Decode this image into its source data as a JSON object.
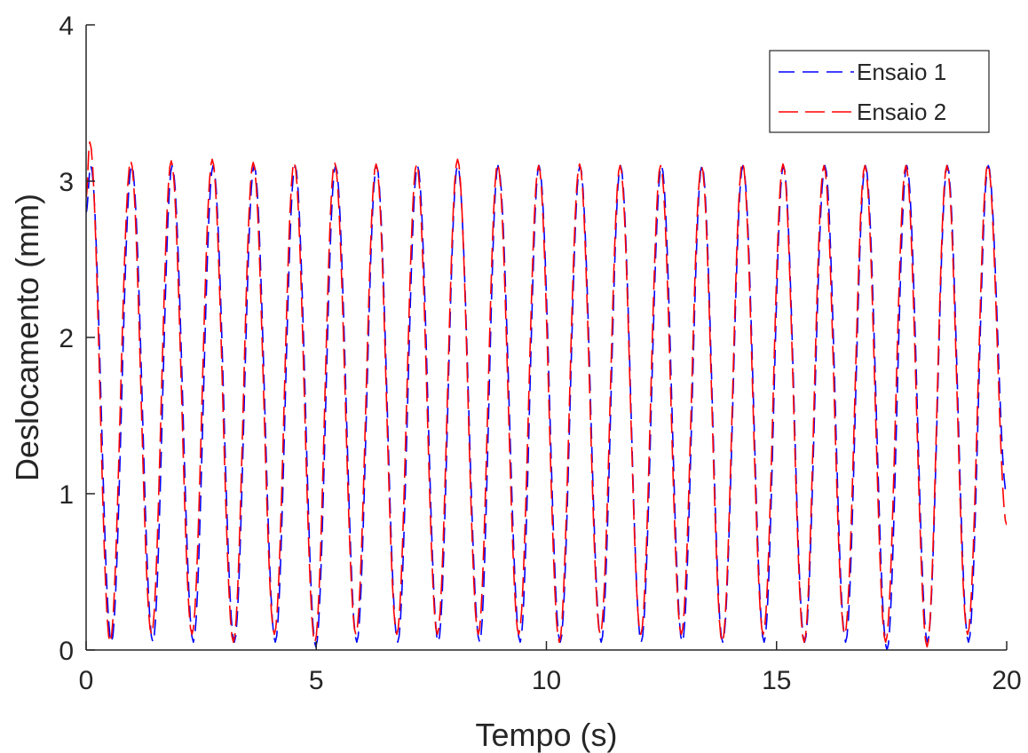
{
  "chart_data": {
    "type": "line",
    "xlabel": "Tempo (s)",
    "ylabel": "Deslocamento (mm)",
    "xlim": [
      0,
      20
    ],
    "ylim": [
      0,
      4
    ],
    "x_ticks": [
      "0",
      "5",
      "10",
      "15",
      "20"
    ],
    "y_ticks": [
      "0",
      "1",
      "2",
      "3",
      "4"
    ],
    "grid": false,
    "legend_position": "top-right",
    "series": [
      {
        "name": "Ensaio 1",
        "color": "#0000ff",
        "line_style": "dashed",
        "x": [
          0,
          0.1,
          0.55,
          0.99,
          1.45,
          1.87,
          2.33,
          2.76,
          3.22,
          3.65,
          4.11,
          4.54,
          4.99,
          5.42,
          5.88,
          6.31,
          6.77,
          7.2,
          7.65,
          8.07,
          8.55,
          8.95,
          9.43,
          9.84,
          10.3,
          10.73,
          11.19,
          11.61,
          12.06,
          12.5,
          12.95,
          13.38,
          13.83,
          14.27,
          14.73,
          15.15,
          15.61,
          16.05,
          16.5,
          16.93,
          17.4,
          17.83,
          18.28,
          18.71,
          19.17,
          19.6,
          20.0
        ],
        "y": [
          2.8,
          3.1,
          0.05,
          3.1,
          0.05,
          3.1,
          0.05,
          3.1,
          0.05,
          3.1,
          0.05,
          3.1,
          0.02,
          3.1,
          0.05,
          3.1,
          0.05,
          3.1,
          0.05,
          3.1,
          0.05,
          3.1,
          0.05,
          3.1,
          0.05,
          3.1,
          0.05,
          3.1,
          0.05,
          3.1,
          0.05,
          3.1,
          0.05,
          3.1,
          0.05,
          3.1,
          0.05,
          3.1,
          0.05,
          3.1,
          0.0,
          3.1,
          0.05,
          3.1,
          0.05,
          3.1,
          1.0
        ]
      },
      {
        "name": "Ensaio 2",
        "color": "#ff0000",
        "line_style": "dashed",
        "x": [
          0,
          0.08,
          0.52,
          0.97,
          1.42,
          1.85,
          2.3,
          2.74,
          3.2,
          3.63,
          4.09,
          4.52,
          4.97,
          5.4,
          5.86,
          6.3,
          6.75,
          7.18,
          7.63,
          8.07,
          8.52,
          8.94,
          9.4,
          9.83,
          10.28,
          10.72,
          11.17,
          11.6,
          12.05,
          12.48,
          12.93,
          13.37,
          13.82,
          14.26,
          14.71,
          15.14,
          15.6,
          16.03,
          16.48,
          16.92,
          17.37,
          17.81,
          18.27,
          18.7,
          19.15,
          19.59,
          20.0
        ],
        "y": [
          2.9,
          3.25,
          0.05,
          3.13,
          0.1,
          3.13,
          0.1,
          3.14,
          0.05,
          3.12,
          0.1,
          3.12,
          0.05,
          3.12,
          0.1,
          3.11,
          0.1,
          3.11,
          0.1,
          3.14,
          0.1,
          3.11,
          0.1,
          3.1,
          0.05,
          3.11,
          0.1,
          3.1,
          0.1,
          3.1,
          0.1,
          3.1,
          0.05,
          3.12,
          0.1,
          3.11,
          0.05,
          3.1,
          0.1,
          3.1,
          0.05,
          3.1,
          0.02,
          3.1,
          0.1,
          3.11,
          0.8
        ]
      }
    ]
  }
}
